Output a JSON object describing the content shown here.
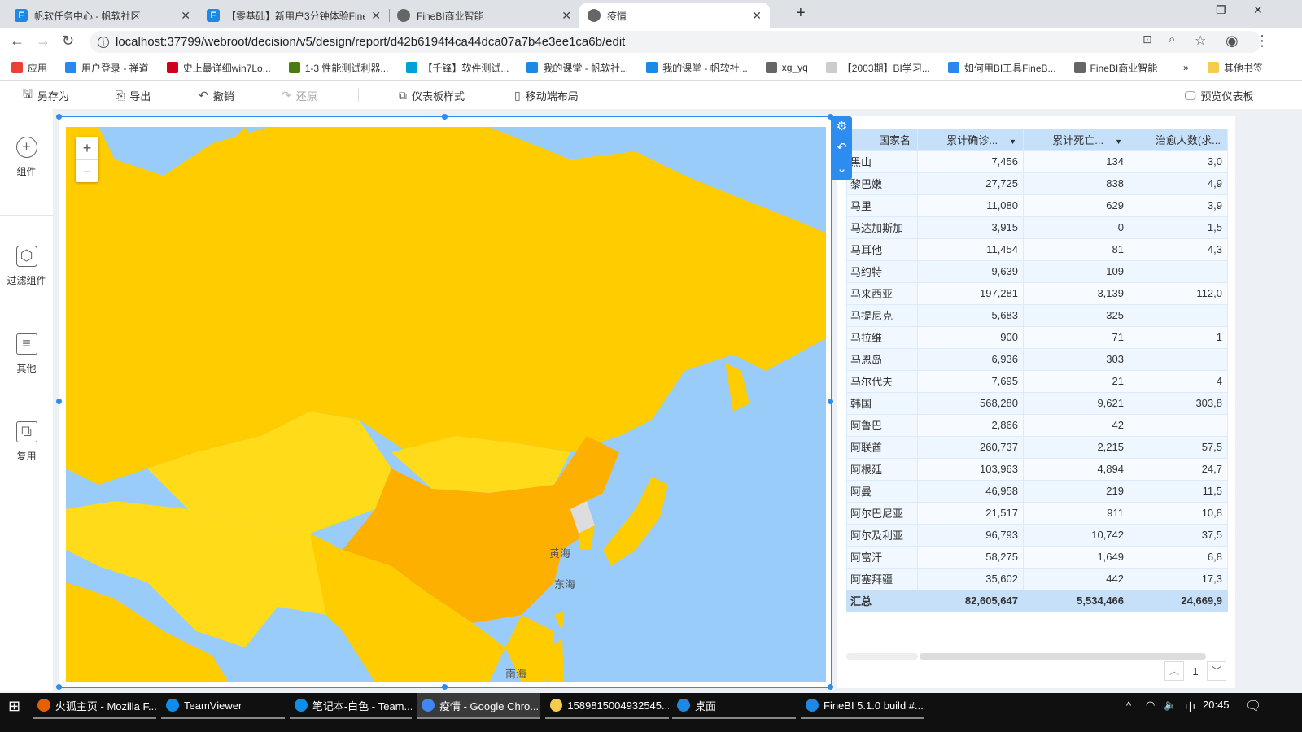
{
  "browser": {
    "tabs": [
      {
        "title": "帆软任务中心 - 帆软社区",
        "icon": "fanruan-icon"
      },
      {
        "title": "【零基础】新用户3分钟体验Fine",
        "icon": "fanruan-icon"
      },
      {
        "title": "FineBI商业智能",
        "icon": "globe-icon"
      },
      {
        "title": "疫情",
        "icon": "globe-icon",
        "active": true
      }
    ],
    "url": "localhost:37799/webroot/decision/v5/design/report/d42b6194f4ca44dca07a7b4e3ee1ca6b/edit",
    "bookmarks": [
      {
        "label": "应用",
        "color": "#e94235"
      },
      {
        "label": "用户登录 - 禅道",
        "color": "#2b87f0"
      },
      {
        "label": "史上最详细win7Lo...",
        "color": "#d0021b"
      },
      {
        "label": "1-3 性能测试利器...",
        "color": "#4a7c12"
      },
      {
        "label": "【千锋】软件测试...",
        "color": "#00a1d6"
      },
      {
        "label": "我的课堂 - 帆软社...",
        "color": "#1e88e5"
      },
      {
        "label": "我的课堂 - 帆软社...",
        "color": "#1e88e5"
      },
      {
        "label": "xg_yq",
        "color": "#666"
      },
      {
        "label": "【2003期】BI学习...",
        "color": "#ccc"
      },
      {
        "label": "如何用BI工具FineB...",
        "color": "#2b87f0"
      },
      {
        "label": "FineBI商业智能",
        "color": "#666"
      }
    ],
    "more_bookmarks": "»",
    "other_bookmarks": "其他书签"
  },
  "toolbar": {
    "save_as": "另存为",
    "export": "导出",
    "undo": "撤销",
    "redo": "还原",
    "dashboard_style": "仪表板样式",
    "mobile_layout": "移动端布局",
    "preview": "预览仪表板"
  },
  "sidebar": [
    {
      "label": "组件",
      "icon": "plus-circle-icon"
    },
    {
      "label": "过滤组件",
      "icon": "cube-icon"
    },
    {
      "label": "其他",
      "icon": "list-icon"
    },
    {
      "label": "复用",
      "icon": "copy-icon"
    }
  ],
  "map": {
    "zoom_in": "+",
    "zoom_out": "−",
    "labels": [
      "黄海",
      "东海",
      "南海"
    ],
    "colors": {
      "sea": "#99ccf9",
      "high": "#fdb000",
      "mid": "#ffcc00",
      "low": "#ffdb1a",
      "none": "#dddddd"
    }
  },
  "table": {
    "headers": [
      "国家名",
      "累计确诊...",
      "累计死亡...",
      "治愈人数(求..."
    ],
    "rows": [
      [
        "黑山",
        "7,456",
        "134",
        "3,0"
      ],
      [
        "黎巴嫩",
        "27,725",
        "838",
        "4,9"
      ],
      [
        "马里",
        "11,080",
        "629",
        "3,9"
      ],
      [
        "马达加斯加",
        "3,915",
        "0",
        "1,5"
      ],
      [
        "马耳他",
        "11,454",
        "81",
        "4,3"
      ],
      [
        "马约特",
        "9,639",
        "109",
        ""
      ],
      [
        "马来西亚",
        "197,281",
        "3,139",
        "112,0"
      ],
      [
        "马提尼克",
        "5,683",
        "325",
        ""
      ],
      [
        "马拉维",
        "900",
        "71",
        "1"
      ],
      [
        "马恩岛",
        "6,936",
        "303",
        ""
      ],
      [
        "马尔代夫",
        "7,695",
        "21",
        "4"
      ],
      [
        "韩国",
        "568,280",
        "9,621",
        "303,8"
      ],
      [
        "阿鲁巴",
        "2,866",
        "42",
        ""
      ],
      [
        "阿联酋",
        "260,737",
        "2,215",
        "57,5"
      ],
      [
        "阿根廷",
        "103,963",
        "4,894",
        "24,7"
      ],
      [
        "阿曼",
        "46,958",
        "219",
        "11,5"
      ],
      [
        "阿尔巴尼亚",
        "21,517",
        "911",
        "10,8"
      ],
      [
        "阿尔及利亚",
        "96,793",
        "10,742",
        "37,5"
      ],
      [
        "阿富汗",
        "58,275",
        "1,649",
        "6,8"
      ],
      [
        "阿塞拜疆",
        "35,602",
        "442",
        "17,3"
      ]
    ],
    "total": [
      "汇总",
      "82,605,647",
      "5,534,466",
      "24,669,9"
    ],
    "page": "1"
  },
  "taskbar": {
    "items": [
      "火狐主页 - Mozilla F...",
      "TeamViewer",
      "笔记本-白色 - Team...",
      "疫情 - Google Chro...",
      "1589815004932545....",
      "桌面",
      "FineBI 5.1.0 build #..."
    ],
    "ime": "中",
    "time": "20:45"
  }
}
